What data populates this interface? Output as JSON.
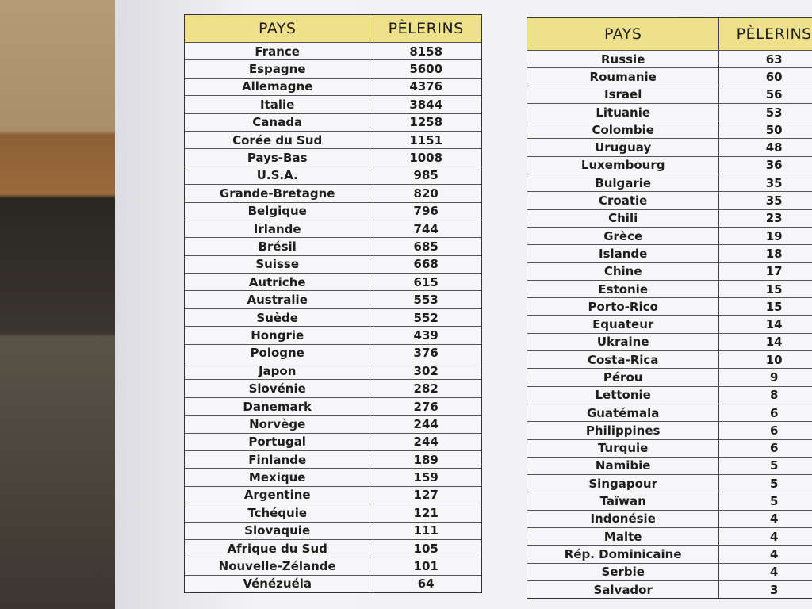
{
  "tables": [
    {
      "header": [
        "PAYS",
        "PÈLERINS"
      ],
      "rows": [
        [
          "France",
          8158
        ],
        [
          "Espagne",
          5600
        ],
        [
          "Allemagne",
          4376
        ],
        [
          "Italie",
          3844
        ],
        [
          "Canada",
          1258
        ],
        [
          "Corée du Sud",
          1151
        ],
        [
          "Pays-Bas",
          1008
        ],
        [
          "U.S.A.",
          985
        ],
        [
          "Grande-Bretagne",
          820
        ],
        [
          "Belgique",
          796
        ],
        [
          "Irlande",
          744
        ],
        [
          "Brésil",
          685
        ],
        [
          "Suisse",
          668
        ],
        [
          "Autriche",
          615
        ],
        [
          "Australie",
          553
        ],
        [
          "Suède",
          552
        ],
        [
          "Hongrie",
          439
        ],
        [
          "Pologne",
          376
        ],
        [
          "Japon",
          302
        ],
        [
          "Slovénie",
          282
        ],
        [
          "Danemark",
          276
        ],
        [
          "Norvège",
          244
        ],
        [
          "Portugal",
          244
        ],
        [
          "Finlande",
          189
        ],
        [
          "Mexique",
          159
        ],
        [
          "Argentine",
          127
        ],
        [
          "Tchéquie",
          121
        ],
        [
          "Slovaquie",
          111
        ],
        [
          "Afrique du Sud",
          105
        ],
        [
          "Nouvelle-Zélande",
          101
        ],
        [
          "Vénézuéla",
          64
        ]
      ]
    },
    {
      "header": [
        "PAYS",
        "PÈLERINS"
      ],
      "rows": [
        [
          "Russie",
          63
        ],
        [
          "Roumanie",
          60
        ],
        [
          "Israel",
          56
        ],
        [
          "Lituanie",
          53
        ],
        [
          "Colombie",
          50
        ],
        [
          "Uruguay",
          48
        ],
        [
          "Luxembourg",
          36
        ],
        [
          "Bulgarie",
          35
        ],
        [
          "Croatie",
          35
        ],
        [
          "Chili",
          23
        ],
        [
          "Grèce",
          19
        ],
        [
          "Islande",
          18
        ],
        [
          "Chine",
          17
        ],
        [
          "Estonie",
          15
        ],
        [
          "Porto-Rico",
          15
        ],
        [
          "Equateur",
          14
        ],
        [
          "Ukraine",
          14
        ],
        [
          "Costa-Rica",
          10
        ],
        [
          "Pérou",
          9
        ],
        [
          "Lettonie",
          8
        ],
        [
          "Guatémala",
          6
        ],
        [
          "Philippines",
          6
        ],
        [
          "Turquie",
          6
        ],
        [
          "Namibie",
          5
        ],
        [
          "Singapour",
          5
        ],
        [
          "Taïwan",
          5
        ],
        [
          "Indonésie",
          4
        ],
        [
          "Malte",
          4
        ],
        [
          "Rép. Dominicaine",
          4
        ],
        [
          "Serbie",
          4
        ],
        [
          "Salvador",
          3
        ]
      ]
    }
  ]
}
